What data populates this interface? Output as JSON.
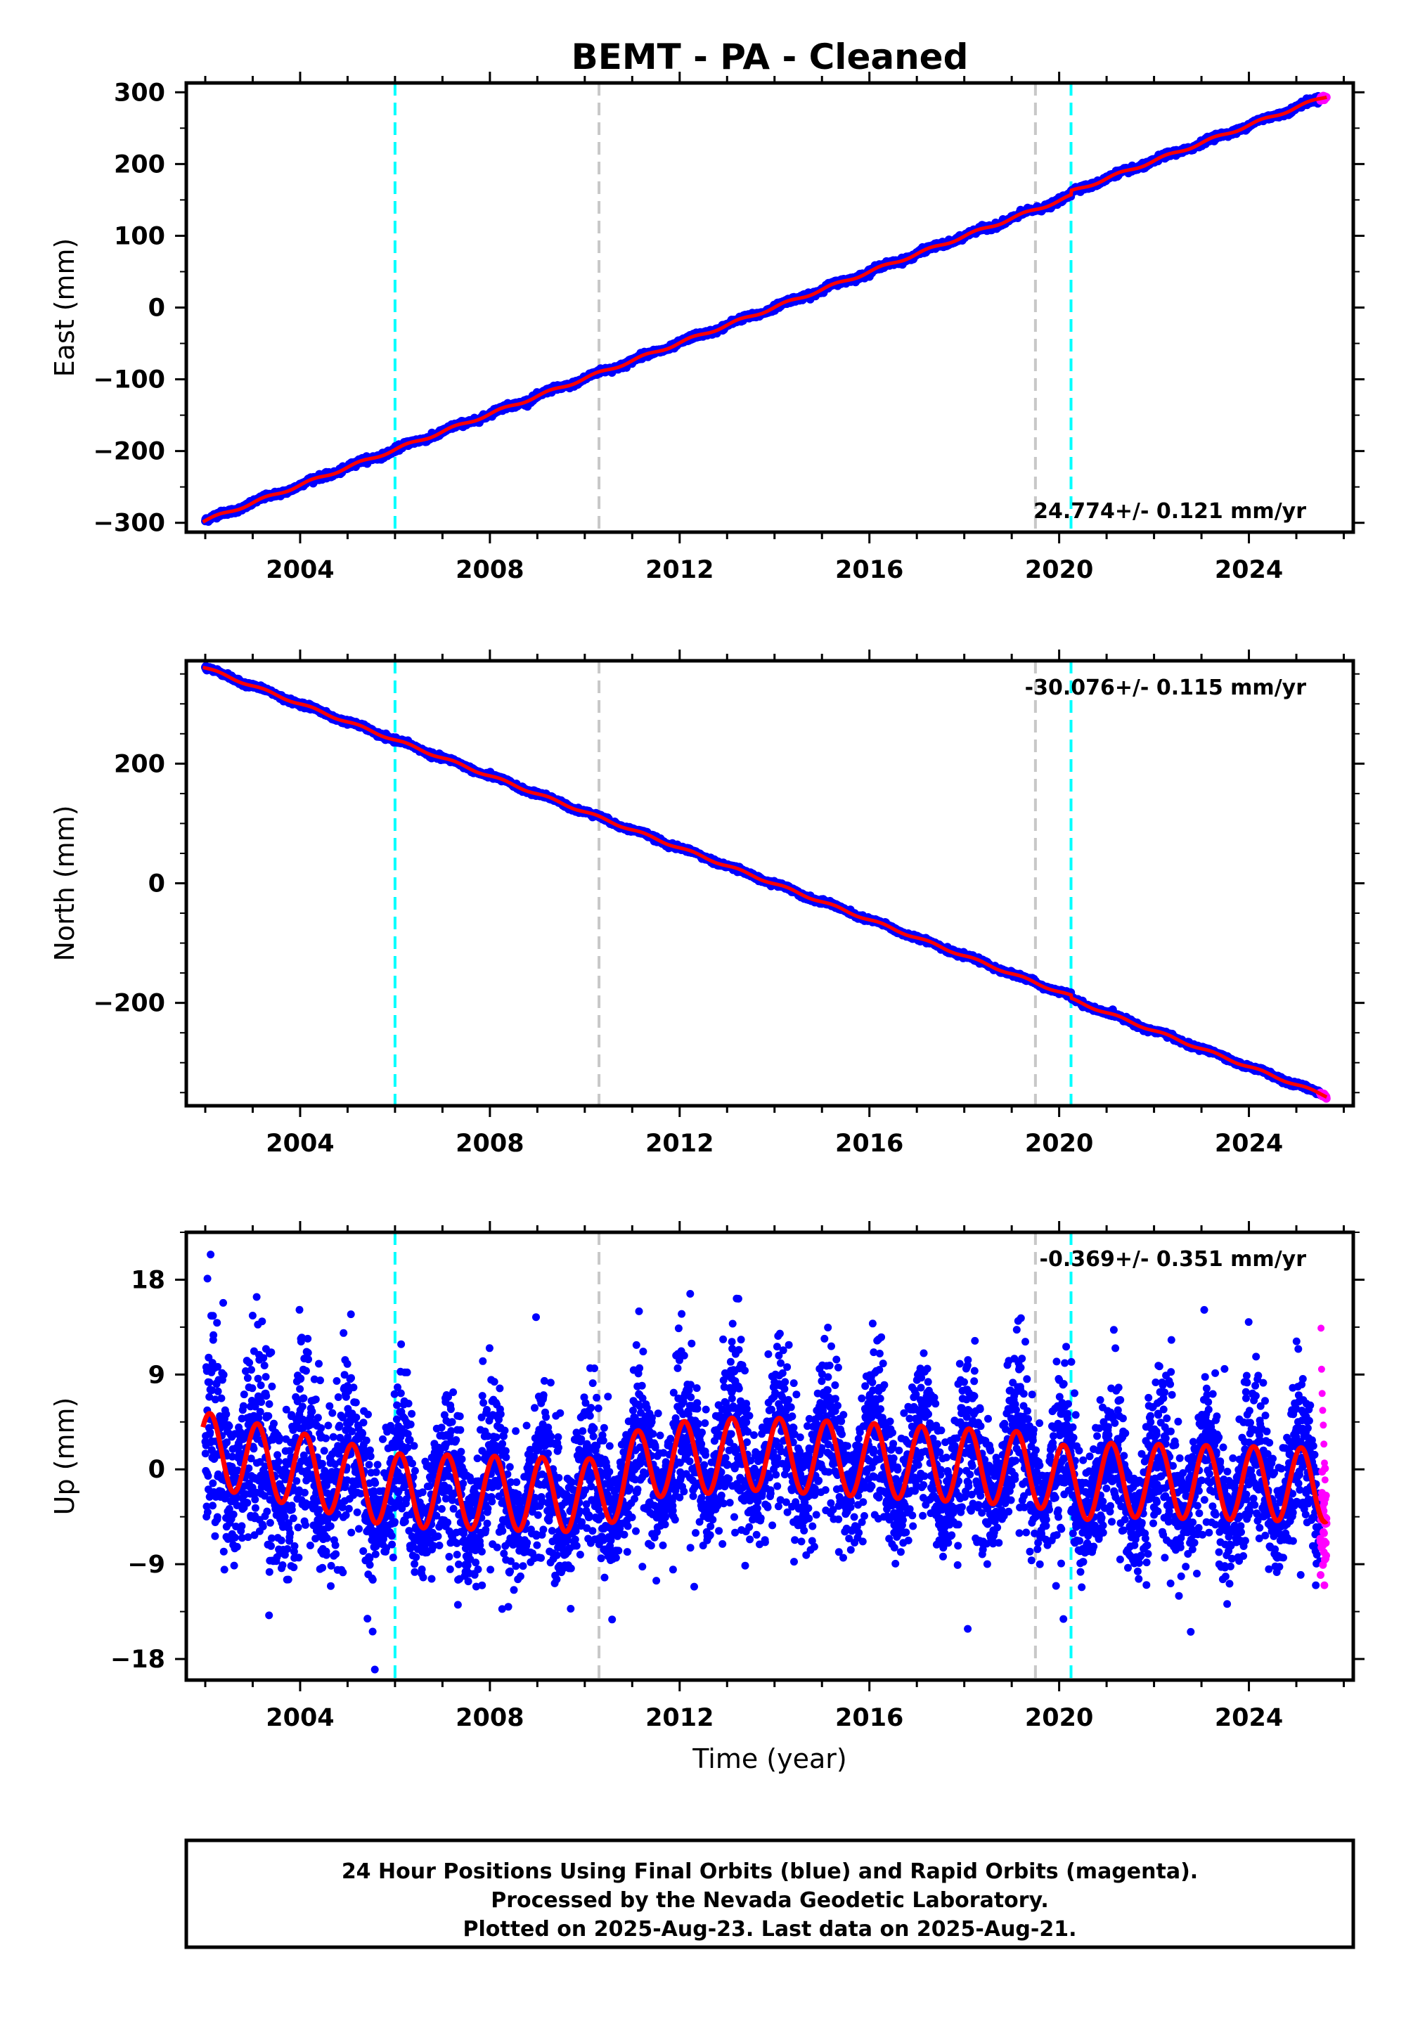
{
  "title": "BEMT  - PA - Cleaned",
  "colors": {
    "final_orbits": "#0000ff",
    "rapid_orbits": "#ff00ff",
    "model": "#ff0000",
    "equipment_change": "#00ffff",
    "other_event": "#c8c8c8"
  },
  "events": {
    "cyan": [
      2006.0,
      2020.25
    ],
    "gray": [
      2010.3,
      2019.5
    ]
  },
  "x_ticks": [
    "2004",
    "2008",
    "2012",
    "2016",
    "2020",
    "2024"
  ],
  "chart_data": [
    {
      "type": "scatter",
      "ylabel": "East (mm)",
      "xlim": [
        2001.6,
        2026.2
      ],
      "ylim": [
        -313,
        313
      ],
      "y_ticks": [
        "300",
        "200",
        "100",
        "0",
        "−100",
        "−200",
        "−300"
      ],
      "y_tick_values": [
        300,
        200,
        100,
        0,
        -100,
        -200,
        -300
      ],
      "rate": "24.774+/- 0.121 mm/yr",
      "rate_position": "bottom-right",
      "series": [
        {
          "name": "Final Orbits",
          "x": [
            2002.0,
            2004.0,
            2006.0,
            2008.0,
            2010.3,
            2012.0,
            2016.0,
            2019.5,
            2020.25,
            2024.0,
            2025.5
          ],
          "y": [
            -297,
            -248,
            -197,
            -147,
            -90,
            -48,
            50,
            137,
            160,
            255,
            291
          ]
        },
        {
          "name": "Rapid Orbits",
          "x": [
            2025.5,
            2025.64
          ],
          "y": [
            291,
            295
          ]
        }
      ],
      "model": {
        "slope": 24.774,
        "intercept_at_2002": -297,
        "step_at_2020.25": 6,
        "annual_amplitude": 2
      }
    },
    {
      "type": "scatter",
      "ylabel": "North (mm)",
      "xlim": [
        2001.6,
        2026.2
      ],
      "ylim": [
        -372,
        372
      ],
      "y_ticks": [
        "200",
        "0",
        "−200"
      ],
      "y_tick_values": [
        200,
        0,
        -200
      ],
      "rate": "-30.076+/- 0.115 mm/yr",
      "rate_position": "top-right",
      "series": [
        {
          "name": "Final Orbits",
          "x": [
            2002.0,
            2004.0,
            2006.0,
            2008.0,
            2010.3,
            2012.0,
            2016.0,
            2019.5,
            2020.25,
            2024.0,
            2025.5
          ],
          "y": [
            360,
            298,
            240,
            180,
            110,
            55,
            -75,
            -180,
            -203,
            -318,
            -358
          ]
        },
        {
          "name": "Rapid Orbits",
          "x": [
            2025.5,
            2025.64
          ],
          "y": [
            -358,
            -360
          ]
        }
      ],
      "model": {
        "slope": -30.076,
        "intercept_at_2002": 360,
        "step_at_2020.25": -5,
        "annual_amplitude": 2
      }
    },
    {
      "type": "scatter",
      "ylabel": "Up (mm)",
      "xlabel": "Time (year)",
      "xlim": [
        2001.6,
        2026.2
      ],
      "ylim": [
        -20,
        22.5
      ],
      "y_ticks": [
        "18",
        "9",
        "0",
        "−9",
        "−18"
      ],
      "y_tick_values": [
        18,
        9,
        0,
        -9,
        -18
      ],
      "rate": "-0.369+/- 0.351 mm/yr",
      "rate_position": "top-right",
      "series": [
        {
          "name": "Final Orbits",
          "x": [
            2002.0,
            2003.0,
            2005.0,
            2007.0,
            2009.0,
            2010.3,
            2012.0,
            2014.0,
            2016.0,
            2018.0,
            2020.25,
            2022.0,
            2024.0,
            2025.5
          ],
          "y": [
            2,
            3,
            1,
            -2,
            -3,
            -5,
            0,
            2,
            2,
            1,
            -3,
            -1,
            -2,
            -2
          ]
        },
        {
          "name": "Rapid Orbits",
          "x": [
            2025.55,
            2025.6,
            2025.64
          ],
          "y": [
            8,
            4,
            -1
          ]
        }
      ],
      "model": {
        "annual_amplitude": 3.5,
        "offsets": [
          [
            2001.9,
            2.0
          ],
          [
            2006.0,
            -2.0
          ],
          [
            2010.3,
            -2.5
          ],
          [
            2011.3,
            0.8
          ],
          [
            2013.5,
            1.5
          ],
          [
            2019.5,
            0.0
          ],
          [
            2020.25,
            -1.5
          ],
          [
            2021.0,
            -1.0
          ],
          [
            2025.64,
            -1.5
          ]
        ]
      }
    }
  ],
  "footer": {
    "line1": "24 Hour Positions Using Final Orbits (blue) and Rapid Orbits (magenta).",
    "line2": "Processed by the Nevada Geodetic Laboratory.",
    "line3": "Plotted on 2025-Aug-23. Last data on 2025-Aug-21."
  }
}
